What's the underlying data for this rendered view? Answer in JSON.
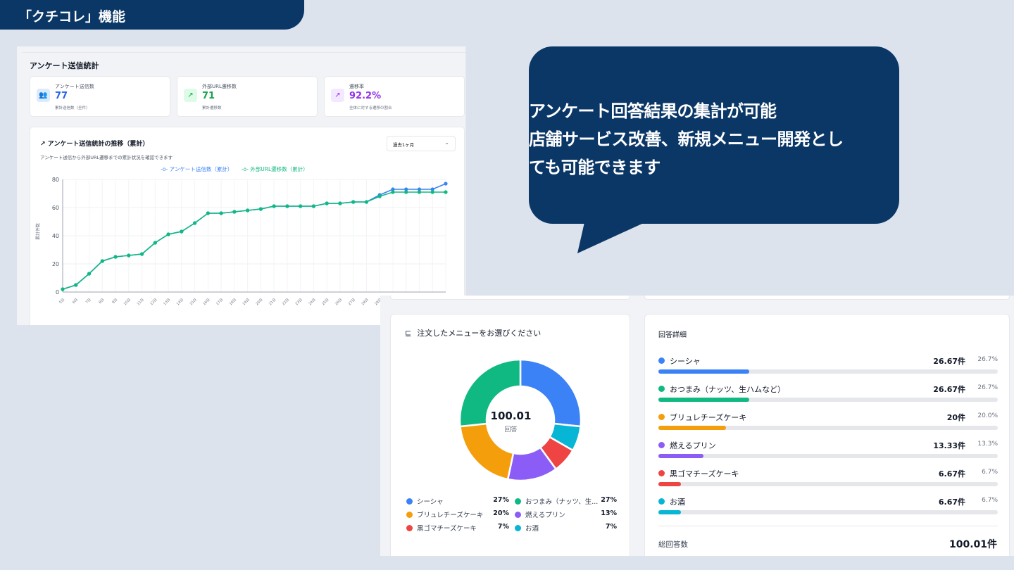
{
  "header": {
    "title": "「クチコレ」機能"
  },
  "bubble": {
    "lines": [
      "アンケート回答結果の集計が可能",
      "店舗サービス改善、新規メニュー開発とし",
      "ても可能できます"
    ]
  },
  "survey_stats": {
    "title": "アンケート送信統計",
    "cards": [
      {
        "label": "アンケート送信数",
        "value": "77",
        "sub": "累計送信数（全件）",
        "icon": "users-icon",
        "color": "#2563eb"
      },
      {
        "label": "外部URL遷移数",
        "value": "71",
        "sub": "累計遷移数",
        "icon": "external-link-icon",
        "color": "#16a34a"
      },
      {
        "label": "遷移率",
        "value": "92.2%",
        "sub": "全体に対する遷移の割合",
        "icon": "trending-up-icon",
        "color": "#9333ea"
      }
    ]
  },
  "trend_chart": {
    "title": "アンケート送信統計の推移（累計）",
    "subtitle": "アンケート送信から外部URL遷移までの累計状況を確認できます",
    "period_select": "過去1ヶ月",
    "ylabel": "累計件数",
    "legend_a": "アンケート送信数（累計）",
    "legend_b": "外部URL遷移数（累計）"
  },
  "chart_data": {
    "type": "line",
    "x": [
      "5日",
      "6日",
      "7日",
      "8日",
      "9日",
      "10日",
      "11日",
      "12日",
      "13日",
      "14日",
      "15日",
      "16日",
      "17日",
      "18日",
      "19日",
      "20日",
      "21日",
      "22日",
      "23日",
      "24日",
      "25日",
      "26日",
      "27日",
      "28日",
      "29日",
      "30日",
      "31日",
      "1日",
      "2日",
      "3日"
    ],
    "series": [
      {
        "name": "アンケート送信数（累計）",
        "color": "#3b82f6",
        "values": [
          2,
          5,
          13,
          22,
          25,
          26,
          27,
          35,
          41,
          43,
          49,
          56,
          56,
          57,
          58,
          59,
          61,
          61,
          61,
          61,
          63,
          63,
          64,
          64,
          69,
          73,
          73,
          73,
          73,
          77
        ]
      },
      {
        "name": "外部URL遷移数（累計）",
        "color": "#10b981",
        "values": [
          2,
          5,
          13,
          22,
          25,
          26,
          27,
          35,
          41,
          43,
          49,
          56,
          56,
          57,
          58,
          59,
          61,
          61,
          61,
          61,
          63,
          63,
          64,
          64,
          68,
          71,
          71,
          71,
          71,
          71
        ]
      }
    ],
    "ylim": [
      0,
      80
    ],
    "yticks": [
      0,
      20,
      40,
      60,
      80
    ],
    "grid": true
  },
  "donut": {
    "title": "注文したメニューをお選びください",
    "center_value": "100.01",
    "center_label": "回答",
    "slices": [
      {
        "name": "シーシャ",
        "value": 26.67,
        "color": "#3b82f6",
        "legend_name": "シーシャ",
        "legend_pct": "27%"
      },
      {
        "name": "お酒",
        "value": 6.67,
        "color": "#06b6d4",
        "legend_name": "お酒",
        "legend_pct": "7%"
      },
      {
        "name": "黒ゴマチーズケーキ",
        "value": 6.67,
        "color": "#ef4444",
        "legend_name": "黒ゴマチーズケーキ",
        "legend_pct": "7%"
      },
      {
        "name": "燃えるプリン",
        "value": 13.33,
        "color": "#8b5cf6",
        "legend_name": "燃えるプリン",
        "legend_pct": "13%"
      },
      {
        "name": "ブリュレチーズケーキ",
        "value": 20,
        "color": "#f59e0b",
        "legend_name": "ブリュレチーズケーキ",
        "legend_pct": "20%"
      },
      {
        "name": "おつまみ（ナッツ、生ハムなど）",
        "value": 26.67,
        "color": "#10b981",
        "legend_name": "おつまみ（ナッツ、生...",
        "legend_pct": "27%"
      }
    ]
  },
  "details": {
    "title": "回答詳細",
    "rows": [
      {
        "name": "シーシャ",
        "count": "26.67件",
        "pct": "26.7%",
        "fraction": 0.267,
        "color": "#3b82f6"
      },
      {
        "name": "おつまみ（ナッツ、生ハムなど）",
        "count": "26.67件",
        "pct": "26.7%",
        "fraction": 0.267,
        "color": "#10b981"
      },
      {
        "name": "ブリュレチーズケーキ",
        "count": "20件",
        "pct": "20.0%",
        "fraction": 0.2,
        "color": "#f59e0b"
      },
      {
        "name": "燃えるプリン",
        "count": "13.33件",
        "pct": "13.3%",
        "fraction": 0.133,
        "color": "#8b5cf6"
      },
      {
        "name": "黒ゴマチーズケーキ",
        "count": "6.67件",
        "pct": "6.7%",
        "fraction": 0.067,
        "color": "#ef4444"
      },
      {
        "name": "お酒",
        "count": "6.67件",
        "pct": "6.7%",
        "fraction": 0.067,
        "color": "#06b6d4"
      }
    ],
    "total_label": "総回答数",
    "total_value": "100.01件"
  }
}
